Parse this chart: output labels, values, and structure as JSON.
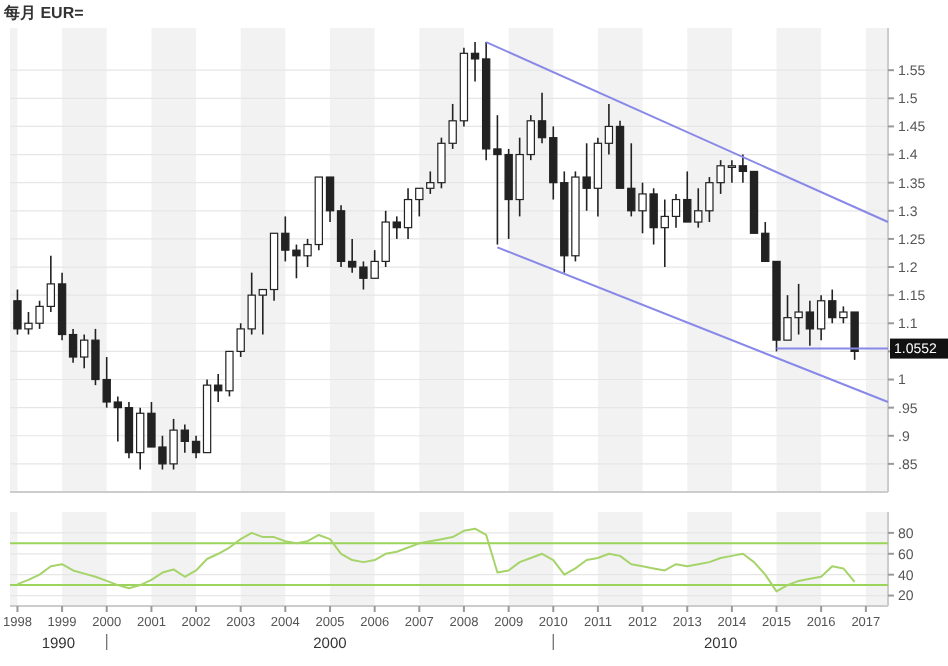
{
  "chart_data": [
    {
      "type": "candlestick",
      "title": "每月 EUR=",
      "grid": true,
      "tick_labels": "y",
      "x": [
        "1998-01",
        "1998-04",
        "1998-07",
        "1998-10",
        "1999-01",
        "1999-04",
        "1999-07",
        "1999-10",
        "2000-01",
        "2000-04",
        "2000-07",
        "2000-10",
        "2001-01",
        "2001-04",
        "2001-07",
        "2001-10",
        "2002-01",
        "2002-04",
        "2002-07",
        "2002-10",
        "2003-01",
        "2003-04",
        "2003-07",
        "2003-10",
        "2004-01",
        "2004-04",
        "2004-07",
        "2004-10",
        "2005-01",
        "2005-04",
        "2005-07",
        "2005-10",
        "2006-01",
        "2006-04",
        "2006-07",
        "2006-10",
        "2007-01",
        "2007-04",
        "2007-07",
        "2007-10",
        "2008-01",
        "2008-04",
        "2008-07",
        "2008-10",
        "2009-01",
        "2009-04",
        "2009-07",
        "2009-10",
        "2010-01",
        "2010-04",
        "2010-07",
        "2010-10",
        "2011-01",
        "2011-04",
        "2011-07",
        "2011-10",
        "2012-01",
        "2012-04",
        "2012-07",
        "2012-10",
        "2013-01",
        "2013-04",
        "2013-07",
        "2013-10",
        "2014-01",
        "2014-04",
        "2014-07",
        "2014-10",
        "2015-01",
        "2015-04",
        "2015-07",
        "2015-10",
        "2016-01",
        "2016-04",
        "2016-07",
        "2016-10"
      ],
      "ohlc": [
        [
          1.14,
          1.16,
          1.08,
          1.09
        ],
        [
          1.09,
          1.12,
          1.08,
          1.1
        ],
        [
          1.1,
          1.14,
          1.09,
          1.13
        ],
        [
          1.13,
          1.22,
          1.12,
          1.17
        ],
        [
          1.17,
          1.19,
          1.07,
          1.08
        ],
        [
          1.08,
          1.09,
          1.03,
          1.04
        ],
        [
          1.04,
          1.08,
          1.02,
          1.07
        ],
        [
          1.07,
          1.09,
          0.99,
          1.0
        ],
        [
          1.0,
          1.04,
          0.95,
          0.96
        ],
        [
          0.96,
          0.97,
          0.89,
          0.95
        ],
        [
          0.95,
          0.96,
          0.86,
          0.87
        ],
        [
          0.87,
          0.95,
          0.84,
          0.94
        ],
        [
          0.94,
          0.96,
          0.88,
          0.88
        ],
        [
          0.88,
          0.9,
          0.84,
          0.85
        ],
        [
          0.85,
          0.93,
          0.84,
          0.91
        ],
        [
          0.91,
          0.92,
          0.87,
          0.89
        ],
        [
          0.89,
          0.9,
          0.86,
          0.87
        ],
        [
          0.87,
          1.0,
          0.87,
          0.99
        ],
        [
          0.99,
          1.01,
          0.96,
          0.98
        ],
        [
          0.98,
          1.05,
          0.97,
          1.05
        ],
        [
          1.05,
          1.1,
          1.04,
          1.09
        ],
        [
          1.09,
          1.19,
          1.08,
          1.15
        ],
        [
          1.15,
          1.16,
          1.08,
          1.16
        ],
        [
          1.16,
          1.26,
          1.14,
          1.26
        ],
        [
          1.26,
          1.29,
          1.21,
          1.23
        ],
        [
          1.23,
          1.24,
          1.18,
          1.22
        ],
        [
          1.22,
          1.25,
          1.2,
          1.24
        ],
        [
          1.24,
          1.36,
          1.23,
          1.36
        ],
        [
          1.36,
          1.36,
          1.28,
          1.3
        ],
        [
          1.3,
          1.31,
          1.2,
          1.21
        ],
        [
          1.21,
          1.25,
          1.19,
          1.2
        ],
        [
          1.2,
          1.21,
          1.16,
          1.18
        ],
        [
          1.18,
          1.23,
          1.18,
          1.21
        ],
        [
          1.21,
          1.3,
          1.2,
          1.28
        ],
        [
          1.28,
          1.29,
          1.25,
          1.27
        ],
        [
          1.27,
          1.34,
          1.25,
          1.32
        ],
        [
          1.32,
          1.34,
          1.29,
          1.34
        ],
        [
          1.34,
          1.37,
          1.33,
          1.35
        ],
        [
          1.35,
          1.43,
          1.34,
          1.42
        ],
        [
          1.42,
          1.49,
          1.41,
          1.46
        ],
        [
          1.46,
          1.59,
          1.45,
          1.58
        ],
        [
          1.58,
          1.6,
          1.53,
          1.57
        ],
        [
          1.57,
          1.6,
          1.39,
          1.41
        ],
        [
          1.41,
          1.47,
          1.24,
          1.4
        ],
        [
          1.4,
          1.41,
          1.25,
          1.32
        ],
        [
          1.32,
          1.43,
          1.29,
          1.4
        ],
        [
          1.4,
          1.47,
          1.39,
          1.46
        ],
        [
          1.46,
          1.51,
          1.42,
          1.43
        ],
        [
          1.43,
          1.45,
          1.32,
          1.35
        ],
        [
          1.35,
          1.37,
          1.19,
          1.22
        ],
        [
          1.22,
          1.37,
          1.21,
          1.36
        ],
        [
          1.36,
          1.42,
          1.3,
          1.34
        ],
        [
          1.34,
          1.43,
          1.29,
          1.42
        ],
        [
          1.42,
          1.49,
          1.4,
          1.45
        ],
        [
          1.45,
          1.46,
          1.34,
          1.34
        ],
        [
          1.34,
          1.42,
          1.29,
          1.3
        ],
        [
          1.3,
          1.35,
          1.26,
          1.33
        ],
        [
          1.33,
          1.34,
          1.24,
          1.27
        ],
        [
          1.27,
          1.32,
          1.2,
          1.29
        ],
        [
          1.29,
          1.33,
          1.27,
          1.32
        ],
        [
          1.32,
          1.37,
          1.28,
          1.28
        ],
        [
          1.28,
          1.34,
          1.27,
          1.3
        ],
        [
          1.3,
          1.36,
          1.28,
          1.35
        ],
        [
          1.35,
          1.39,
          1.33,
          1.38
        ],
        [
          1.38,
          1.39,
          1.35,
          1.38
        ],
        [
          1.38,
          1.4,
          1.35,
          1.37
        ],
        [
          1.37,
          1.37,
          1.26,
          1.26
        ],
        [
          1.26,
          1.28,
          1.21,
          1.21
        ],
        [
          1.21,
          1.21,
          1.05,
          1.07
        ],
        [
          1.07,
          1.15,
          1.07,
          1.11
        ],
        [
          1.11,
          1.17,
          1.08,
          1.12
        ],
        [
          1.12,
          1.14,
          1.06,
          1.09
        ],
        [
          1.09,
          1.15,
          1.07,
          1.14
        ],
        [
          1.14,
          1.16,
          1.1,
          1.11
        ],
        [
          1.11,
          1.13,
          1.1,
          1.12
        ],
        [
          1.12,
          1.12,
          1.035,
          1.05
        ]
      ],
      "series": [
        {
          "type": "line",
          "color": "#8888e8",
          "x": [
            "2008-07",
            "2017-07"
          ],
          "values": [
            1.6,
            1.28
          ]
        },
        {
          "type": "line",
          "color": "#8888e8",
          "x": [
            "2008-10",
            "2017-07"
          ],
          "values": [
            1.235,
            0.96
          ]
        },
        {
          "type": "line",
          "color": "#8888e8",
          "x": [
            "2015-01",
            "2017-07"
          ],
          "values": [
            1.055,
            1.055
          ]
        }
      ],
      "annotations": [
        {
          "text": "1.0552",
          "x": "2017-07",
          "y": 1.055
        }
      ],
      "xlim": [
        "1997-11",
        "2017-07"
      ],
      "ylim": [
        0.8,
        1.625
      ],
      "yticks": [
        {
          "value": 0.85,
          "label": ".85"
        },
        {
          "value": 0.9,
          "label": ".9"
        },
        {
          "value": 0.95,
          "label": ".95"
        },
        1,
        {
          "value": 1.05,
          "label": null
        },
        1.1,
        1.15,
        1.2,
        1.25,
        1.3,
        1.35,
        1.4,
        1.45,
        1.5,
        1.55
      ]
    },
    {
      "type": "line",
      "grid": true,
      "x": [
        "1998-01",
        "1998-04",
        "1998-07",
        "1998-10",
        "1999-01",
        "1999-04",
        "1999-07",
        "1999-10",
        "2000-01",
        "2000-04",
        "2000-07",
        "2000-10",
        "2001-01",
        "2001-04",
        "2001-07",
        "2001-10",
        "2002-01",
        "2002-04",
        "2002-07",
        "2002-10",
        "2003-01",
        "2003-04",
        "2003-07",
        "2003-10",
        "2004-01",
        "2004-04",
        "2004-07",
        "2004-10",
        "2005-01",
        "2005-04",
        "2005-07",
        "2005-10",
        "2006-01",
        "2006-04",
        "2006-07",
        "2006-10",
        "2007-01",
        "2007-04",
        "2007-07",
        "2007-10",
        "2008-01",
        "2008-04",
        "2008-07",
        "2008-10",
        "2009-01",
        "2009-04",
        "2009-07",
        "2009-10",
        "2010-01",
        "2010-04",
        "2010-07",
        "2010-10",
        "2011-01",
        "2011-04",
        "2011-07",
        "2011-10",
        "2012-01",
        "2012-04",
        "2012-07",
        "2012-10",
        "2013-01",
        "2013-04",
        "2013-07",
        "2013-10",
        "2014-01",
        "2014-04",
        "2014-07",
        "2014-10",
        "2015-01",
        "2015-04",
        "2015-07",
        "2015-10",
        "2016-01",
        "2016-04",
        "2016-07",
        "2016-10"
      ],
      "series": [
        {
          "color": "#a6d46a",
          "values": [
            31,
            35,
            40,
            48,
            50,
            44,
            41,
            38,
            34,
            30,
            27,
            30,
            35,
            42,
            45,
            38,
            44,
            55,
            60,
            66,
            74,
            80,
            76,
            76,
            72,
            70,
            72,
            78,
            74,
            60,
            54,
            52,
            54,
            60,
            62,
            66,
            70,
            72,
            74,
            76,
            82,
            84,
            78,
            42,
            44,
            52,
            56,
            60,
            54,
            40,
            46,
            54,
            56,
            60,
            58,
            50,
            48,
            46,
            44,
            50,
            48,
            50,
            52,
            56,
            58,
            60,
            52,
            40,
            24,
            30,
            34,
            36,
            38,
            48,
            46,
            33
          ]
        }
      ],
      "ref_lines": [
        {
          "axis": "y",
          "value": 70,
          "color": "#9ad45a"
        },
        {
          "axis": "y",
          "value": 30,
          "color": "#9ad45a"
        }
      ],
      "xlim": [
        "1997-11",
        "2017-07"
      ],
      "ylim": [
        10,
        100
      ],
      "yticks": [
        20,
        40,
        60,
        80
      ],
      "xticks": [
        {
          "value": "1998",
          "label": "1998"
        },
        {
          "value": "1999",
          "label": "1999"
        },
        {
          "value": "2000",
          "label": "2000"
        },
        {
          "value": "2001",
          "label": "2001"
        },
        {
          "value": "2002",
          "label": "2002"
        },
        {
          "value": "2003",
          "label": "2003"
        },
        {
          "value": "2004",
          "label": "2004"
        },
        {
          "value": "2005",
          "label": "2005"
        },
        {
          "value": "2006",
          "label": "2006"
        },
        {
          "value": "2007",
          "label": "2007"
        },
        {
          "value": "2008",
          "label": "2008"
        },
        {
          "value": "2009",
          "label": "2009"
        },
        {
          "value": "2010",
          "label": "2010"
        },
        {
          "value": "2011",
          "label": "2011"
        },
        {
          "value": "2012",
          "label": "2012"
        },
        {
          "value": "2013",
          "label": "2013"
        },
        {
          "value": "2014",
          "label": "2014"
        },
        {
          "value": "2015",
          "label": "2015"
        },
        {
          "value": "2016",
          "label": "2016"
        },
        {
          "value": "2017",
          "label": "2017"
        }
      ],
      "annotations": [
        "1990",
        "2000",
        "2010"
      ]
    }
  ]
}
